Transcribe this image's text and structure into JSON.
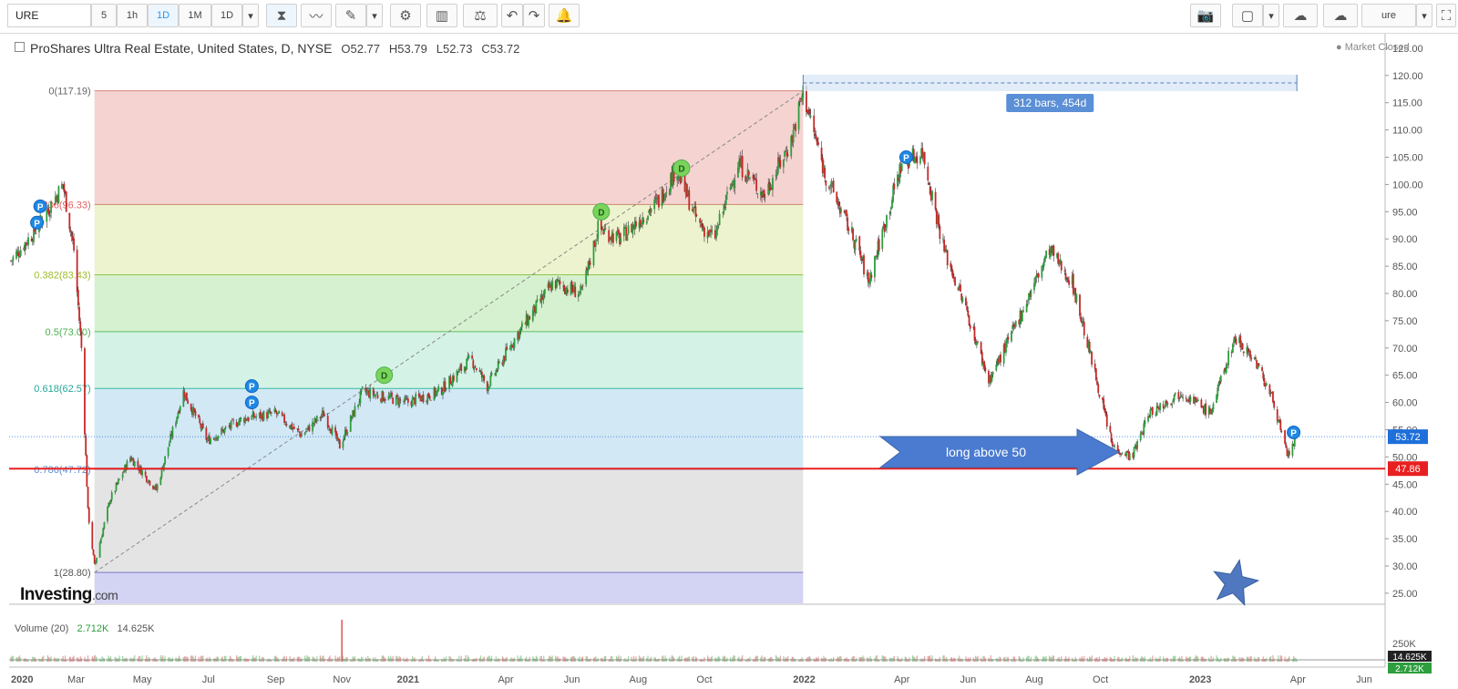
{
  "toolbar": {
    "symbol": "URE",
    "intervals": [
      "5",
      "1h",
      "1D",
      "1M",
      "1D"
    ],
    "active_interval_index": 2,
    "right_label": "ure"
  },
  "legend": {
    "title": "ProShares Ultra Real Estate, United States, D, NYSE",
    "open": "O52.77",
    "high": "H53.79",
    "low": "L52.73",
    "close": "C53.72",
    "status": "Market Closed"
  },
  "volume_legend": {
    "label": "Volume (20)",
    "v1": "2.712K",
    "v2": "14.625K",
    "axis_label": "250K",
    "tag_top": "14.625K",
    "tag_bottom": "2.712K"
  },
  "branding": {
    "name": "Investing",
    "suffix": ".com"
  },
  "colors": {
    "up": "#2e9e3e",
    "down": "#c62828",
    "support_line": "#e82020",
    "price_tag": "#1e6fd9",
    "arrow": "#4a7bd0"
  },
  "annotations": {
    "measure_label": "312 bars, 454d",
    "arrow_text": "long above 50",
    "support_tag": "47.86",
    "last_price_tag": "53.72"
  },
  "chart_data": {
    "type": "candlestick",
    "x_ticks": [
      "2020",
      "Mar",
      "May",
      "Jul",
      "Sep",
      "Nov",
      "2021",
      "Apr",
      "Jun",
      "Aug",
      "Oct",
      "2022",
      "Apr",
      "Jun",
      "Aug",
      "Oct",
      "2023",
      "Apr",
      "Jun"
    ],
    "y_ticks": [
      "25.00",
      "30.00",
      "35.00",
      "40.00",
      "45.00",
      "50.00",
      "55.00",
      "60.00",
      "65.00",
      "70.00",
      "75.00",
      "80.00",
      "85.00",
      "90.00",
      "95.00",
      "100.00",
      "105.00",
      "110.00",
      "115.00",
      "120.00",
      "125.00"
    ],
    "ylim": [
      25,
      125
    ],
    "fib_levels": [
      {
        "label": "0(117.19)",
        "value": 117.19
      },
      {
        "label": "0.236(96.33)",
        "value": 96.33
      },
      {
        "label": "0.382(83.43)",
        "value": 83.43
      },
      {
        "label": "0.5(73.00)",
        "value": 73.0
      },
      {
        "label": "0.618(62.57)",
        "value": 62.57
      },
      {
        "label": "0.786(47.72)",
        "value": 47.72
      },
      {
        "label": "1(28.80)",
        "value": 28.8
      }
    ],
    "support_level": 47.86,
    "last_close": 53.72,
    "price_path": [
      [
        "2020-01-01",
        86
      ],
      [
        "2020-01-25",
        92
      ],
      [
        "2020-02-18",
        100
      ],
      [
        "2020-02-28",
        88
      ],
      [
        "2020-03-06",
        70
      ],
      [
        "2020-03-12",
        40
      ],
      [
        "2020-03-18",
        30
      ],
      [
        "2020-04-01",
        42
      ],
      [
        "2020-04-20",
        50
      ],
      [
        "2020-05-14",
        44
      ],
      [
        "2020-06-08",
        62
      ],
      [
        "2020-06-30",
        53
      ],
      [
        "2020-08-01",
        57
      ],
      [
        "2020-09-01",
        58
      ],
      [
        "2020-09-25",
        54
      ],
      [
        "2020-10-15",
        58
      ],
      [
        "2020-10-30",
        52
      ],
      [
        "2020-11-20",
        62
      ],
      [
        "2020-12-31",
        60
      ],
      [
        "2021-01-30",
        62
      ],
      [
        "2021-02-28",
        68
      ],
      [
        "2021-03-15",
        63
      ],
      [
        "2021-04-10",
        72
      ],
      [
        "2021-05-15",
        82
      ],
      [
        "2021-06-10",
        80
      ],
      [
        "2021-06-25",
        92
      ],
      [
        "2021-07-15",
        90
      ],
      [
        "2021-08-20",
        97
      ],
      [
        "2021-09-05",
        103
      ],
      [
        "2021-09-25",
        93
      ],
      [
        "2021-10-10",
        90
      ],
      [
        "2021-11-01",
        104
      ],
      [
        "2021-11-25",
        98
      ],
      [
        "2021-12-20",
        108
      ],
      [
        "2021-12-31",
        117
      ],
      [
        "2022-01-20",
        102
      ],
      [
        "2022-02-20",
        88
      ],
      [
        "2022-03-01",
        82
      ],
      [
        "2022-04-01",
        104
      ],
      [
        "2022-04-20",
        106
      ],
      [
        "2022-05-10",
        88
      ],
      [
        "2022-06-01",
        76
      ],
      [
        "2022-06-20",
        64
      ],
      [
        "2022-07-10",
        72
      ],
      [
        "2022-08-15",
        88
      ],
      [
        "2022-09-05",
        82
      ],
      [
        "2022-09-30",
        62
      ],
      [
        "2022-10-12",
        52
      ],
      [
        "2022-10-30",
        50
      ],
      [
        "2022-11-15",
        58
      ],
      [
        "2022-12-15",
        62
      ],
      [
        "2023-01-10",
        58
      ],
      [
        "2023-02-02",
        72
      ],
      [
        "2023-02-20",
        68
      ],
      [
        "2023-03-10",
        60
      ],
      [
        "2023-03-22",
        50
      ],
      [
        "2023-03-31",
        53.72
      ]
    ],
    "volume_spike_date": "2020-11-01"
  }
}
